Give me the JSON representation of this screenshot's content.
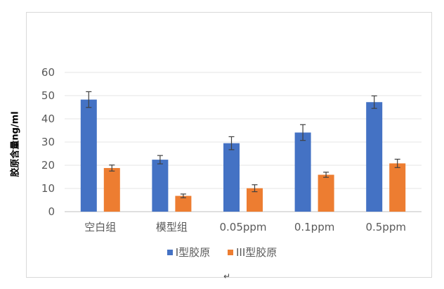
{
  "chart_data": {
    "type": "bar",
    "title": "",
    "xlabel": "",
    "ylabel": "胶原含量ng/ml",
    "ylim": [
      0,
      60
    ],
    "yticks": [
      0,
      10,
      20,
      30,
      40,
      50,
      60
    ],
    "grid": true,
    "legend_position": "bottom",
    "categories": [
      "空白组",
      "模型组",
      "0.05ppm",
      "0.1ppm",
      "0.5ppm"
    ],
    "series": [
      {
        "name": "I型胶原",
        "color": "#4472C4",
        "values": [
          48.3,
          22.4,
          29.5,
          34.1,
          47.2
        ],
        "errors": [
          3.4,
          1.8,
          2.8,
          3.4,
          2.7
        ]
      },
      {
        "name": "III型胶原",
        "color": "#ED7D31",
        "values": [
          18.8,
          6.8,
          10.1,
          15.9,
          20.8
        ],
        "errors": [
          1.3,
          0.8,
          1.5,
          1.1,
          1.8
        ]
      }
    ]
  },
  "footer_mark": "↵"
}
